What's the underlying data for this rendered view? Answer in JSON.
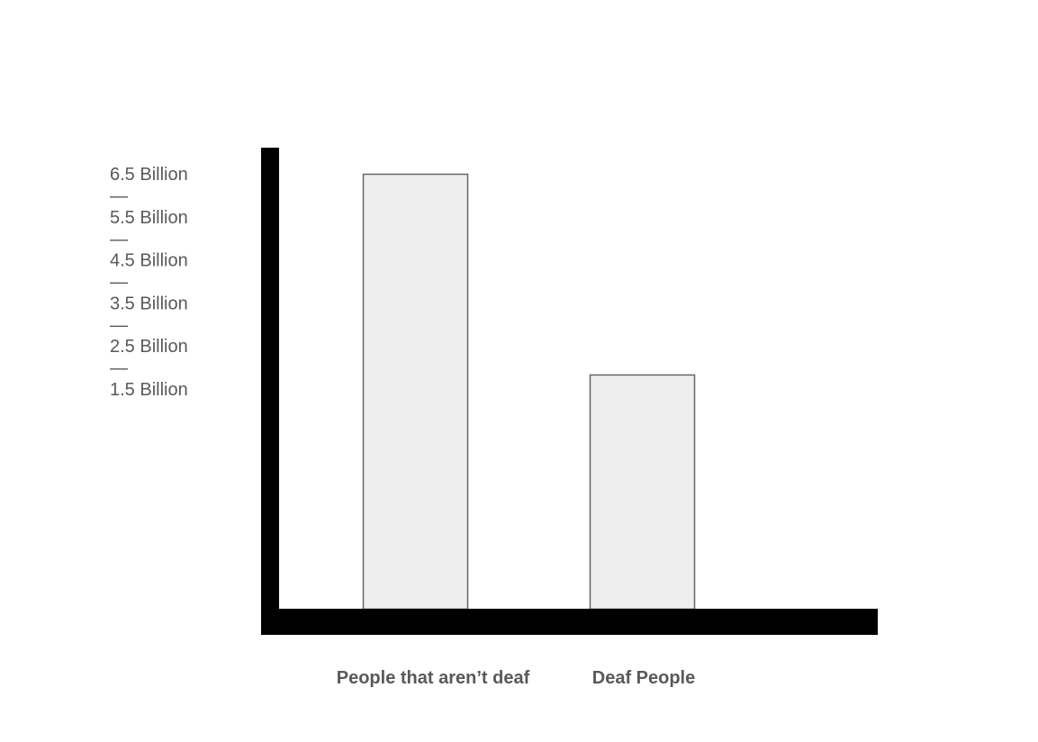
{
  "chart_data": {
    "type": "bar",
    "title": "",
    "xlabel": "",
    "ylabel": "",
    "categories": [
      "People that aren’t deaf",
      "Deaf People"
    ],
    "values": [
      6.5,
      3.5
    ],
    "y_tick_labels": [
      "6.5 Billion",
      "5.5 Billion",
      "4.5 Billion",
      "3.5 Billion",
      "2.5 Billion",
      "1.5 Billion"
    ],
    "y_tick_separator": "—",
    "grid": false,
    "legend": "none",
    "colors": {
      "bar_fill": "#eeeeee",
      "bar_stroke": "#666666",
      "axis": "#000000",
      "text": "#595959"
    }
  }
}
